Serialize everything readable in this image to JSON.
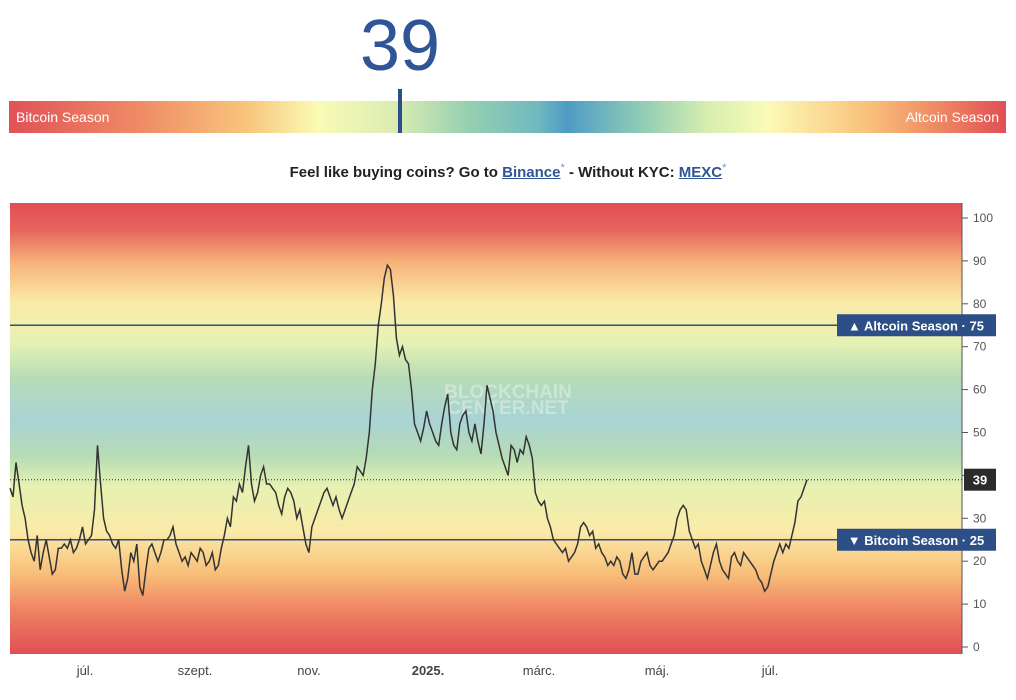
{
  "header": {
    "value": "39",
    "left_label": "Bitcoin Season",
    "right_label": "Altcoin Season"
  },
  "promo": {
    "text": "Feel like buying coins? Go to",
    "link1": "Binance",
    "sep": "- Without KYC:",
    "link2": "MEXC",
    "star": "*"
  },
  "watermark": [
    "BLOCKCHAIN",
    "CENTER.NET"
  ],
  "colors": {
    "line": "#333333",
    "accent": "#2f5597",
    "badge": "#2c4f87",
    "last": "#2b2b2b"
  },
  "chart_data": {
    "type": "line",
    "ylim": [
      0,
      100
    ],
    "y_ticks": [
      0,
      10,
      20,
      30,
      40,
      50,
      60,
      70,
      80,
      90,
      100
    ],
    "x_ticks": [
      "júl.",
      "szept.",
      "nov.",
      "2025.",
      "márc.",
      "máj.",
      "júl."
    ],
    "thresholds": [
      {
        "label": "▲ Altcoin Season",
        "value": 75
      },
      {
        "label": "▼ Bitcoin Season",
        "value": 25
      }
    ],
    "last_value": 39,
    "series": [
      {
        "values": [
          37,
          35,
          43,
          38,
          33,
          30,
          25,
          22,
          20,
          26,
          18,
          22,
          25,
          21,
          17,
          18,
          23,
          23,
          24,
          23,
          25,
          22,
          23,
          25,
          28,
          24,
          25,
          26,
          32,
          47,
          38,
          30,
          27,
          26,
          24,
          23,
          25,
          18,
          13,
          16,
          22,
          20,
          24,
          14,
          12,
          18,
          23,
          24,
          22,
          20,
          22,
          25,
          25,
          26,
          28,
          24,
          22,
          20,
          21,
          19,
          22,
          21,
          20,
          23,
          22,
          19,
          20,
          22,
          18,
          19,
          23,
          26,
          30,
          28,
          35,
          34,
          38,
          36,
          42,
          47,
          38,
          34,
          36,
          40,
          42,
          38,
          38,
          37,
          36,
          33,
          31,
          35,
          37,
          36,
          34,
          30,
          32,
          28,
          24,
          22,
          28,
          30,
          32,
          34,
          36,
          37,
          35,
          33,
          35,
          32,
          30,
          32,
          34,
          36,
          38,
          42,
          41,
          40,
          44,
          50,
          60,
          66,
          75,
          80,
          86,
          89,
          88,
          82,
          72,
          68,
          70,
          67,
          66,
          60,
          52,
          50,
          48,
          51,
          55,
          52,
          50,
          48,
          47,
          52,
          56,
          59,
          50,
          47,
          46,
          52,
          54,
          55,
          50,
          48,
          52,
          48,
          45,
          52,
          61,
          58,
          55,
          50,
          47,
          44,
          42,
          40,
          47,
          46,
          43,
          46,
          45,
          49,
          47,
          44,
          36,
          34,
          33,
          34,
          30,
          28,
          25,
          24,
          23,
          22,
          23,
          20,
          21,
          22,
          24,
          28,
          29,
          28,
          26,
          27,
          23,
          24,
          22,
          21,
          19,
          20,
          19,
          21,
          20,
          17,
          16,
          18,
          22,
          17,
          17,
          20,
          21,
          22,
          19,
          18,
          19,
          20,
          20,
          21,
          22,
          24,
          26,
          30,
          32,
          33,
          32,
          27,
          25,
          23,
          24,
          20,
          18,
          16,
          19,
          22,
          24,
          20,
          18,
          17,
          16,
          21,
          22,
          20,
          19,
          22,
          21,
          20,
          19,
          18,
          16,
          15,
          13,
          14,
          17,
          20,
          22,
          24,
          22,
          24,
          23,
          26,
          29,
          34,
          35,
          37,
          39
        ]
      }
    ]
  }
}
